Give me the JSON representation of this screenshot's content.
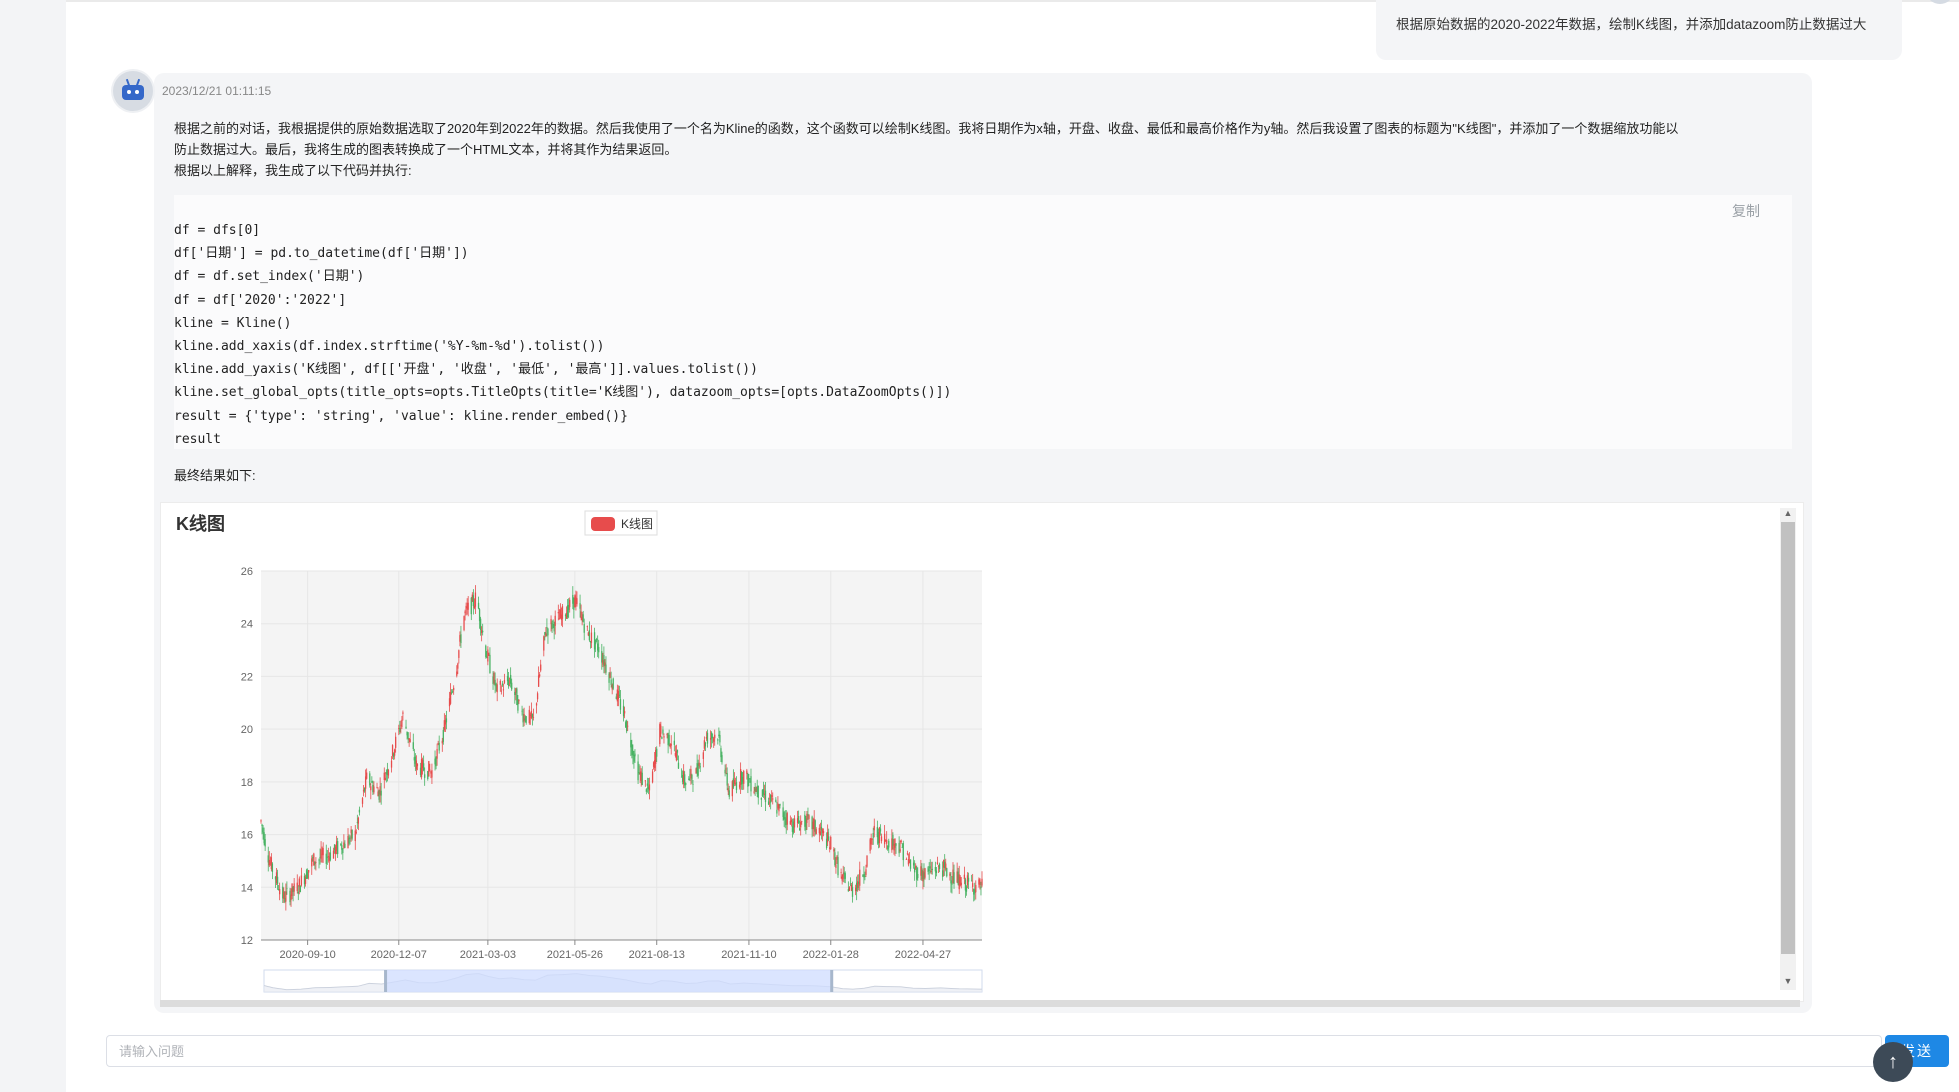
{
  "user_message": "根据原始数据的2020-2022年数据，绘制K线图，并添加datazoom防止数据过大",
  "bot": {
    "timestamp": "2023/12/21 01:11:15",
    "intro_lines": [
      "根据之前的对话，我根据提供的原始数据选取了2020年到2022年的数据。然后我使用了一个名为Kline的函数，这个函数可以绘制K线图。我将日期作为x轴，开盘、收盘、最低和最高价格作为y轴。然后我设置了图表的标题为\"K线图\"，并添加了一个数据缩放功能以",
      "防止数据过大。最后，我将生成的图表转换成了一个HTML文本，并将其作为结果返回。",
      "根据以上解释，我生成了以下代码并执行:"
    ],
    "copy_label": "复制",
    "code_lines": [
      "df = dfs[0]",
      "df['日期'] = pd.to_datetime(df['日期'])",
      "df = df.set_index('日期')",
      "df = df['2020':'2022']",
      "kline = Kline()",
      "kline.add_xaxis(df.index.strftime('%Y-%m-%d').tolist())",
      "kline.add_yaxis('K线图', df[['开盘', '收盘', '最低', '最高']].values.tolist())",
      "kline.set_global_opts(title_opts=opts.TitleOpts(title='K线图'), datazoom_opts=[opts.DataZoomOpts()])",
      "result = {'type': 'string', 'value': kline.render_embed()}",
      "result"
    ],
    "result_label": "最终结果如下:"
  },
  "chart_data": {
    "type": "candlestick",
    "title": "K线图",
    "legend": [
      "K线图"
    ],
    "legend_position": "top-center",
    "up_color": "#e74c4c",
    "down_color": "#47b262",
    "ylim": [
      12,
      26
    ],
    "yticks": [
      12,
      14,
      16,
      18,
      20,
      22,
      24,
      26
    ],
    "xticks": [
      "2020-09-10",
      "2020-12-07",
      "2021-03-03",
      "2021-05-26",
      "2021-08-13",
      "2021-11-10",
      "2022-01-28",
      "2022-04-27"
    ],
    "x_range": [
      "2020-07-27",
      "2022-06-23"
    ],
    "grid": true,
    "datazoom": {
      "start_fraction": 0.17,
      "end_fraction": 0.79
    },
    "trend_points": [
      [
        "2020-07-27",
        16.5
      ],
      [
        "2020-08-05",
        14.9
      ],
      [
        "2020-08-18",
        13.6
      ],
      [
        "2020-09-01",
        14.0
      ],
      [
        "2020-09-15",
        15.0
      ],
      [
        "2020-09-29",
        15.2
      ],
      [
        "2020-10-13",
        15.6
      ],
      [
        "2020-10-26",
        16.0
      ],
      [
        "2020-11-06",
        18.1
      ],
      [
        "2020-11-18",
        17.6
      ],
      [
        "2020-12-02",
        19.2
      ],
      [
        "2020-12-11",
        20.5
      ],
      [
        "2020-12-24",
        18.6
      ],
      [
        "2021-01-08",
        18.4
      ],
      [
        "2021-01-20",
        20.0
      ],
      [
        "2021-01-31",
        22.2
      ],
      [
        "2021-02-08",
        24.3
      ],
      [
        "2021-02-20",
        25.0
      ],
      [
        "2021-03-01",
        23.0
      ],
      [
        "2021-03-12",
        21.4
      ],
      [
        "2021-03-24",
        21.9
      ],
      [
        "2021-04-05",
        20.6
      ],
      [
        "2021-04-16",
        20.3
      ],
      [
        "2021-04-28",
        23.8
      ],
      [
        "2021-05-11",
        24.2
      ],
      [
        "2021-05-26",
        24.9
      ],
      [
        "2021-06-08",
        23.6
      ],
      [
        "2021-06-18",
        23.1
      ],
      [
        "2021-06-30",
        21.9
      ],
      [
        "2021-07-13",
        20.5
      ],
      [
        "2021-07-26",
        18.4
      ],
      [
        "2021-08-06",
        17.6
      ],
      [
        "2021-08-16",
        19.9
      ],
      [
        "2021-08-27",
        19.6
      ],
      [
        "2021-09-09",
        18.0
      ],
      [
        "2021-09-20",
        18.3
      ],
      [
        "2021-09-30",
        19.7
      ],
      [
        "2021-10-11",
        19.8
      ],
      [
        "2021-10-22",
        17.6
      ],
      [
        "2021-11-04",
        18.3
      ],
      [
        "2021-11-16",
        17.8
      ],
      [
        "2021-11-28",
        17.4
      ],
      [
        "2021-12-10",
        16.9
      ],
      [
        "2021-12-22",
        16.4
      ],
      [
        "2022-01-04",
        16.5
      ],
      [
        "2022-01-16",
        16.2
      ],
      [
        "2022-01-28",
        15.6
      ],
      [
        "2022-02-08",
        14.3
      ],
      [
        "2022-02-18",
        13.9
      ],
      [
        "2022-03-01",
        14.6
      ],
      [
        "2022-03-11",
        16.1
      ],
      [
        "2022-03-23",
        15.8
      ],
      [
        "2022-04-05",
        15.6
      ],
      [
        "2022-04-17",
        14.7
      ],
      [
        "2022-04-29",
        14.5
      ],
      [
        "2022-05-14",
        14.8
      ],
      [
        "2022-06-01",
        14.2
      ],
      [
        "2022-06-23",
        14.0
      ]
    ]
  },
  "input": {
    "placeholder": "请输入问题",
    "value": ""
  },
  "send_label": "发送",
  "to_top_label": "↑",
  "colors": {
    "accent": "#1e88e5",
    "up": "#e74c4c",
    "down": "#47b262",
    "grid": "#e6e6e6",
    "plot_bg": "#f4f4f4",
    "zoom_fill": "#cfdcff"
  }
}
